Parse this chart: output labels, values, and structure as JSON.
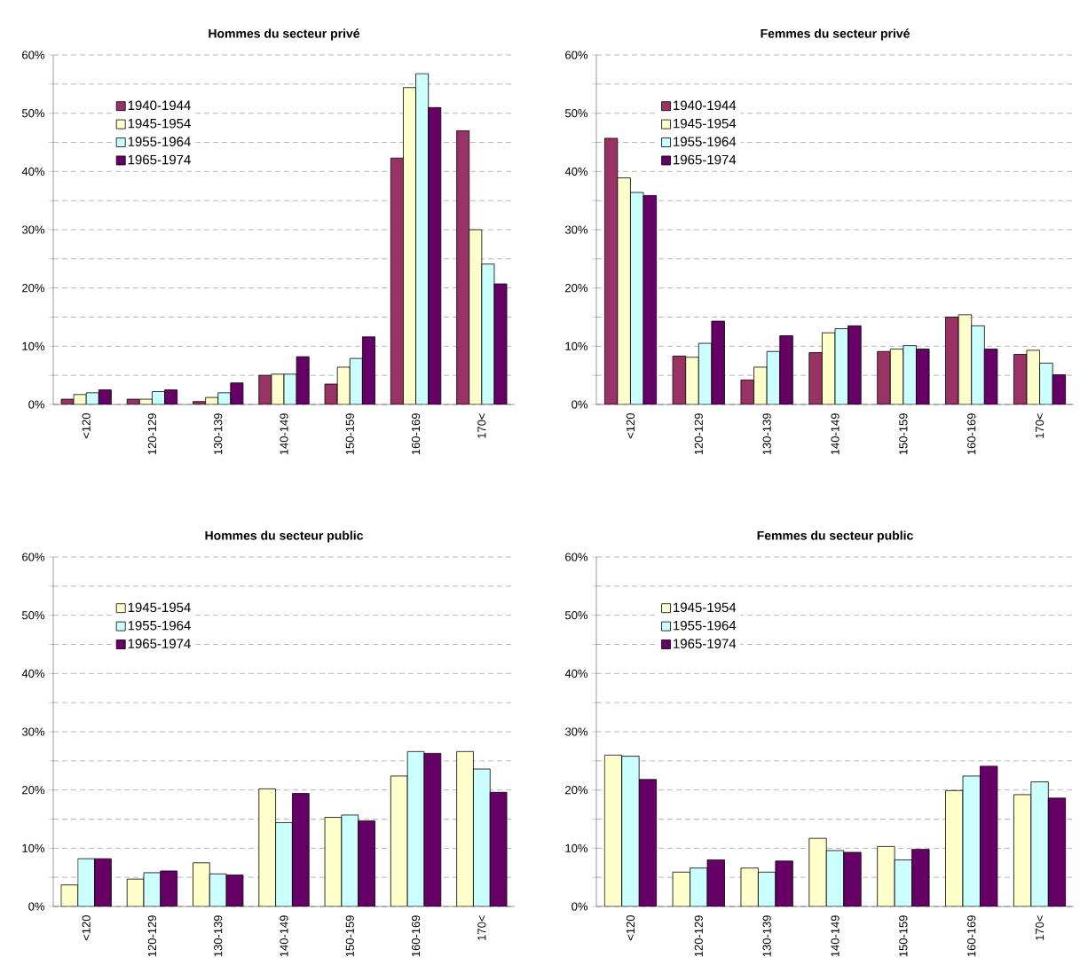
{
  "chart_data": [
    {
      "type": "bar",
      "title": "Hommes du secteur privé",
      "categories": [
        "<120",
        "120-129",
        "130-139",
        "140-149",
        "150-159",
        "160-169",
        "170<"
      ],
      "ylim": [
        0,
        60
      ],
      "yticks": [
        {
          "value": 0,
          "label": "0%"
        },
        {
          "value": 5,
          "label": null
        },
        {
          "value": 10,
          "label": "10%"
        },
        {
          "value": 15,
          "label": null
        },
        {
          "value": 20,
          "label": "20%"
        },
        {
          "value": 25,
          "label": null
        },
        {
          "value": 30,
          "label": "30%"
        },
        {
          "value": 35,
          "label": null
        },
        {
          "value": 40,
          "label": "40%"
        },
        {
          "value": 45,
          "label": null
        },
        {
          "value": 50,
          "label": "50%"
        },
        {
          "value": 55,
          "label": null
        },
        {
          "value": 60,
          "label": "60%"
        }
      ],
      "grid": "y",
      "legend": "top left",
      "series": [
        {
          "name": "1940-1944",
          "color": "#993366",
          "values": [
            0.9,
            0.9,
            0.5,
            5.0,
            3.5,
            42.3,
            47.0
          ]
        },
        {
          "name": "1945-1954",
          "color": "#ffffcc",
          "values": [
            1.7,
            0.9,
            1.2,
            5.2,
            6.4,
            54.4,
            30.0
          ]
        },
        {
          "name": "1955-1964",
          "color": "#ccffff",
          "values": [
            2.0,
            2.2,
            2.0,
            5.2,
            7.9,
            56.8,
            24.1
          ]
        },
        {
          "name": "1965-1974",
          "color": "#660066",
          "values": [
            2.5,
            2.5,
            3.7,
            8.2,
            11.6,
            51.0,
            20.7
          ]
        }
      ]
    },
    {
      "type": "bar",
      "title": "Femmes du secteur privé",
      "categories": [
        "<120",
        "120-129",
        "130-139",
        "140-149",
        "150-159",
        "160-169",
        "170<"
      ],
      "ylim": [
        0,
        60
      ],
      "yticks": [
        {
          "value": 0,
          "label": "0%"
        },
        {
          "value": 5,
          "label": null
        },
        {
          "value": 10,
          "label": "10%"
        },
        {
          "value": 15,
          "label": null
        },
        {
          "value": 20,
          "label": "20%"
        },
        {
          "value": 25,
          "label": null
        },
        {
          "value": 30,
          "label": "30%"
        },
        {
          "value": 35,
          "label": null
        },
        {
          "value": 40,
          "label": "40%"
        },
        {
          "value": 45,
          "label": null
        },
        {
          "value": 50,
          "label": "50%"
        },
        {
          "value": 55,
          "label": null
        },
        {
          "value": 60,
          "label": "60%"
        }
      ],
      "grid": "y",
      "legend": "top left",
      "series": [
        {
          "name": "1940-1944",
          "color": "#993366",
          "values": [
            45.7,
            8.3,
            4.2,
            8.9,
            9.1,
            15.0,
            8.6
          ]
        },
        {
          "name": "1945-1954",
          "color": "#ffffcc",
          "values": [
            38.9,
            8.1,
            6.4,
            12.3,
            9.5,
            15.4,
            9.3
          ]
        },
        {
          "name": "1955-1964",
          "color": "#ccffff",
          "values": [
            36.4,
            10.5,
            9.1,
            13.0,
            10.1,
            13.5,
            7.1
          ]
        },
        {
          "name": "1965-1974",
          "color": "#660066",
          "values": [
            35.9,
            14.3,
            11.8,
            13.5,
            9.5,
            9.5,
            5.1
          ]
        }
      ]
    },
    {
      "type": "bar",
      "title": "Hommes du secteur public",
      "categories": [
        "<120",
        "120-129",
        "130-139",
        "140-149",
        "150-159",
        "160-169",
        "170<"
      ],
      "ylim": [
        0,
        60
      ],
      "yticks": [
        {
          "value": 0,
          "label": "0%"
        },
        {
          "value": 5,
          "label": null
        },
        {
          "value": 10,
          "label": "10%"
        },
        {
          "value": 15,
          "label": null
        },
        {
          "value": 20,
          "label": "20%"
        },
        {
          "value": 25,
          "label": null
        },
        {
          "value": 30,
          "label": "30%"
        },
        {
          "value": 35,
          "label": null
        },
        {
          "value": 40,
          "label": "40%"
        },
        {
          "value": 45,
          "label": null
        },
        {
          "value": 50,
          "label": "50%"
        },
        {
          "value": 55,
          "label": null
        },
        {
          "value": 60,
          "label": "60%"
        }
      ],
      "grid": "y",
      "legend": "top left",
      "series": [
        {
          "name": "1945-1954",
          "color": "#ffffcc",
          "values": [
            3.7,
            4.7,
            7.5,
            20.2,
            15.3,
            22.4,
            26.6
          ]
        },
        {
          "name": "1955-1964",
          "color": "#ccffff",
          "values": [
            8.2,
            5.8,
            5.6,
            14.4,
            15.7,
            26.6,
            23.6
          ]
        },
        {
          "name": "1965-1974",
          "color": "#660066",
          "values": [
            8.2,
            6.1,
            5.4,
            19.4,
            14.7,
            26.3,
            19.6
          ]
        }
      ]
    },
    {
      "type": "bar",
      "title": "Femmes du secteur public",
      "categories": [
        "<120",
        "120-129",
        "130-139",
        "140-149",
        "150-159",
        "160-169",
        "170<"
      ],
      "ylim": [
        0,
        60
      ],
      "yticks": [
        {
          "value": 0,
          "label": "0%"
        },
        {
          "value": 5,
          "label": null
        },
        {
          "value": 10,
          "label": "10%"
        },
        {
          "value": 15,
          "label": null
        },
        {
          "value": 20,
          "label": "20%"
        },
        {
          "value": 25,
          "label": null
        },
        {
          "value": 30,
          "label": "30%"
        },
        {
          "value": 35,
          "label": null
        },
        {
          "value": 40,
          "label": "40%"
        },
        {
          "value": 45,
          "label": null
        },
        {
          "value": 50,
          "label": "50%"
        },
        {
          "value": 55,
          "label": null
        },
        {
          "value": 60,
          "label": "60%"
        }
      ],
      "grid": "y",
      "legend": "top left",
      "series": [
        {
          "name": "1945-1954",
          "color": "#ffffcc",
          "values": [
            26.0,
            5.9,
            6.6,
            11.7,
            10.3,
            19.9,
            19.2
          ]
        },
        {
          "name": "1955-1964",
          "color": "#ccffff",
          "values": [
            25.8,
            6.6,
            5.9,
            9.6,
            8.0,
            22.4,
            21.4
          ]
        },
        {
          "name": "1965-1974",
          "color": "#660066",
          "values": [
            21.8,
            8.0,
            7.8,
            9.3,
            9.8,
            24.1,
            18.6
          ]
        }
      ]
    }
  ]
}
